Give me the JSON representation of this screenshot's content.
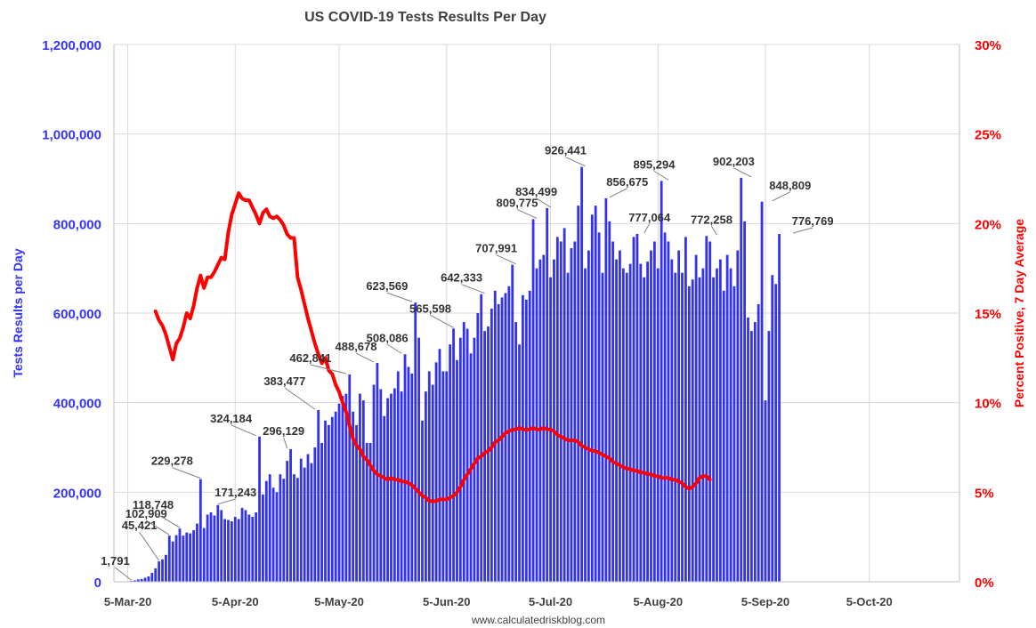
{
  "chart_data": {
    "type": "bar",
    "title": "US COVID-19 Tests Results Per Day",
    "ylabel": "Tests Results per Day",
    "y2label": "Percent Positive, 7 Day Average",
    "source": "www.calculatedriskblog.com",
    "ylim": [
      0,
      1200000
    ],
    "y2lim": [
      0,
      30
    ],
    "yticks": [
      "0",
      "200,000",
      "400,000",
      "600,000",
      "800,000",
      "1,000,000",
      "1,200,000"
    ],
    "y2ticks": [
      "0%",
      "5%",
      "10%",
      "15%",
      "20%",
      "25%",
      "30%"
    ],
    "xticks": [
      "5-Mar-20",
      "5-Apr-20",
      "5-May-20",
      "5-Jun-20",
      "5-Jul-20",
      "5-Aug-20",
      "5-Sep-20",
      "5-Oct-20"
    ],
    "x_start": "2020-03-01",
    "x_end": "2020-10-31",
    "grid": true,
    "colors": {
      "bars": "#3333ee",
      "line": "#ff0000",
      "left_axis": "#3333ff",
      "right_axis": "#ff0000",
      "annotation": "#333333"
    },
    "series": [
      {
        "name": "Tests Results per Day",
        "kind": "bar",
        "axis": "left",
        "start_date": "2020-03-06",
        "values": [
          1791,
          3000,
          5000,
          6000,
          9000,
          12000,
          20000,
          30000,
          45421,
          50000,
          60000,
          102909,
          90000,
          104000,
          118748,
          103000,
          110000,
          108000,
          115000,
          130000,
          229278,
          120000,
          150000,
          155000,
          148000,
          171243,
          160000,
          140000,
          138000,
          135000,
          145000,
          140000,
          165000,
          160000,
          150000,
          145000,
          155000,
          324184,
          195000,
          225000,
          240000,
          210000,
          200000,
          240000,
          230000,
          270000,
          296129,
          240000,
          232000,
          275000,
          255000,
          285000,
          265000,
          300000,
          383477,
          310000,
          360000,
          350000,
          368000,
          380000,
          398000,
          415000,
          420000,
          462841,
          380000,
          350000,
          420000,
          405000,
          310000,
          310000,
          440000,
          488678,
          430000,
          370000,
          410000,
          420000,
          432000,
          470000,
          425000,
          508086,
          480000,
          465000,
          623569,
          545000,
          360000,
          425000,
          470000,
          440000,
          490000,
          520000,
          470000,
          470000,
          530000,
          565598,
          495000,
          545000,
          580000,
          565000,
          510000,
          545000,
          600000,
          642333,
          560000,
          570000,
          610000,
          650000,
          620000,
          635000,
          645000,
          660000,
          707991,
          580000,
          530000,
          640000,
          630000,
          650000,
          809775,
          700000,
          720000,
          730000,
          834499,
          680000,
          720000,
          770000,
          760000,
          790000,
          690000,
          745000,
          760000,
          840000,
          926441,
          700000,
          740000,
          820000,
          840000,
          780000,
          690000,
          856675,
          805000,
          760000,
          720000,
          740000,
          700000,
          690000,
          710000,
          770000,
          777064,
          710000,
          680000,
          715000,
          740000,
          760000,
          700000,
          895294,
          780000,
          760000,
          720000,
          690000,
          740000,
          690000,
          770000,
          660000,
          675000,
          730000,
          680000,
          700000,
          772258,
          760000,
          680000,
          700000,
          720000,
          650000,
          730000,
          700000,
          660000,
          740000,
          902203,
          805000,
          590000,
          560000,
          580000,
          620000,
          848809,
          405000,
          560000,
          685000,
          665000,
          776769
        ]
      },
      {
        "name": "Percent Positive, 7 Day Average",
        "kind": "line",
        "axis": "right",
        "start_date": "2020-03-13",
        "values": [
          15.1,
          14.6,
          14.3,
          13.8,
          13.1,
          12.4,
          13.3,
          13.6,
          14.2,
          15.0,
          14.7,
          15.4,
          16.4,
          17.1,
          16.4,
          17.0,
          17.0,
          17.3,
          17.7,
          18.1,
          18.0,
          19.5,
          20.5,
          21.1,
          21.7,
          21.4,
          21.3,
          21.3,
          20.9,
          20.5,
          20.0,
          20.6,
          20.8,
          20.4,
          20.3,
          20.4,
          20.2,
          19.9,
          19.4,
          19.2,
          19.2,
          17.0,
          16.3,
          15.5,
          14.7,
          14.0,
          13.3,
          12.7,
          12.2,
          12.5,
          11.8,
          11.6,
          11.0,
          10.6,
          10.0,
          9.5,
          8.7,
          8.0,
          7.6,
          7.4,
          7.0,
          6.8,
          6.5,
          6.2,
          6.0,
          5.9,
          5.8,
          5.7,
          5.8,
          5.7,
          5.7,
          5.6,
          5.6,
          5.5,
          5.4,
          5.2,
          5.0,
          4.8,
          4.7,
          4.5,
          4.5,
          4.5,
          4.6,
          4.6,
          4.6,
          4.7,
          4.8,
          5.0,
          5.3,
          5.7,
          6.0,
          6.3,
          6.6,
          6.9,
          7.0,
          7.2,
          7.3,
          7.5,
          7.8,
          7.9,
          8.1,
          8.3,
          8.4,
          8.5,
          8.5,
          8.6,
          8.5,
          8.5,
          8.5,
          8.6,
          8.5,
          8.5,
          8.6,
          8.5,
          8.5,
          8.4,
          8.2,
          8.1,
          8.0,
          7.9,
          7.9,
          7.9,
          7.8,
          7.6,
          7.5,
          7.4,
          7.3,
          7.3,
          7.2,
          7.1,
          7.0,
          6.9,
          6.7,
          6.6,
          6.5,
          6.4,
          6.3,
          6.3,
          6.2,
          6.2,
          6.1,
          6.1,
          6.0,
          6.0,
          5.9,
          5.9,
          5.8,
          5.8,
          5.8,
          5.7,
          5.7,
          5.6,
          5.5,
          5.3,
          5.2,
          5.3,
          5.5,
          5.8,
          5.9,
          5.9,
          5.7
        ]
      }
    ],
    "annotations": [
      {
        "label": "1,791",
        "date": "2020-03-06",
        "value": 1791
      },
      {
        "label": "45,421",
        "date": "2020-03-14",
        "value": 45421
      },
      {
        "label": "102,909",
        "date": "2020-03-17",
        "value": 102909
      },
      {
        "label": "118,748",
        "date": "2020-03-20",
        "value": 118748
      },
      {
        "label": "229,278",
        "date": "2020-03-26",
        "value": 229278
      },
      {
        "label": "171,243",
        "date": "2020-03-31",
        "value": 171243
      },
      {
        "label": "324,184",
        "date": "2020-04-11",
        "value": 324184
      },
      {
        "label": "296,129",
        "date": "2020-04-20",
        "value": 296129
      },
      {
        "label": "383,477",
        "date": "2020-04-28",
        "value": 383477
      },
      {
        "label": "462,841",
        "date": "2020-05-07",
        "value": 462841
      },
      {
        "label": "488,678",
        "date": "2020-05-15",
        "value": 488678
      },
      {
        "label": "508,086",
        "date": "2020-05-23",
        "value": 508086
      },
      {
        "label": "623,569",
        "date": "2020-05-26",
        "value": 623569
      },
      {
        "label": "565,598",
        "date": "2020-06-07",
        "value": 565598
      },
      {
        "label": "642,333",
        "date": "2020-06-16",
        "value": 642333
      },
      {
        "label": "707,991",
        "date": "2020-06-25",
        "value": 707991
      },
      {
        "label": "809,775",
        "date": "2020-07-01",
        "value": 809775
      },
      {
        "label": "834,499",
        "date": "2020-07-05",
        "value": 834499
      },
      {
        "label": "926,441",
        "date": "2020-07-15",
        "value": 926441
      },
      {
        "label": "856,675",
        "date": "2020-07-22",
        "value": 856675
      },
      {
        "label": "777,064",
        "date": "2020-08-01",
        "value": 777064
      },
      {
        "label": "895,294",
        "date": "2020-08-08",
        "value": 895294
      },
      {
        "label": "772,258",
        "date": "2020-08-22",
        "value": 772258
      },
      {
        "label": "902,203",
        "date": "2020-09-01",
        "value": 902203
      },
      {
        "label": "848,809",
        "date": "2020-09-07",
        "value": 848809
      },
      {
        "label": "776,769",
        "date": "2020-09-13",
        "value": 776769
      }
    ]
  }
}
